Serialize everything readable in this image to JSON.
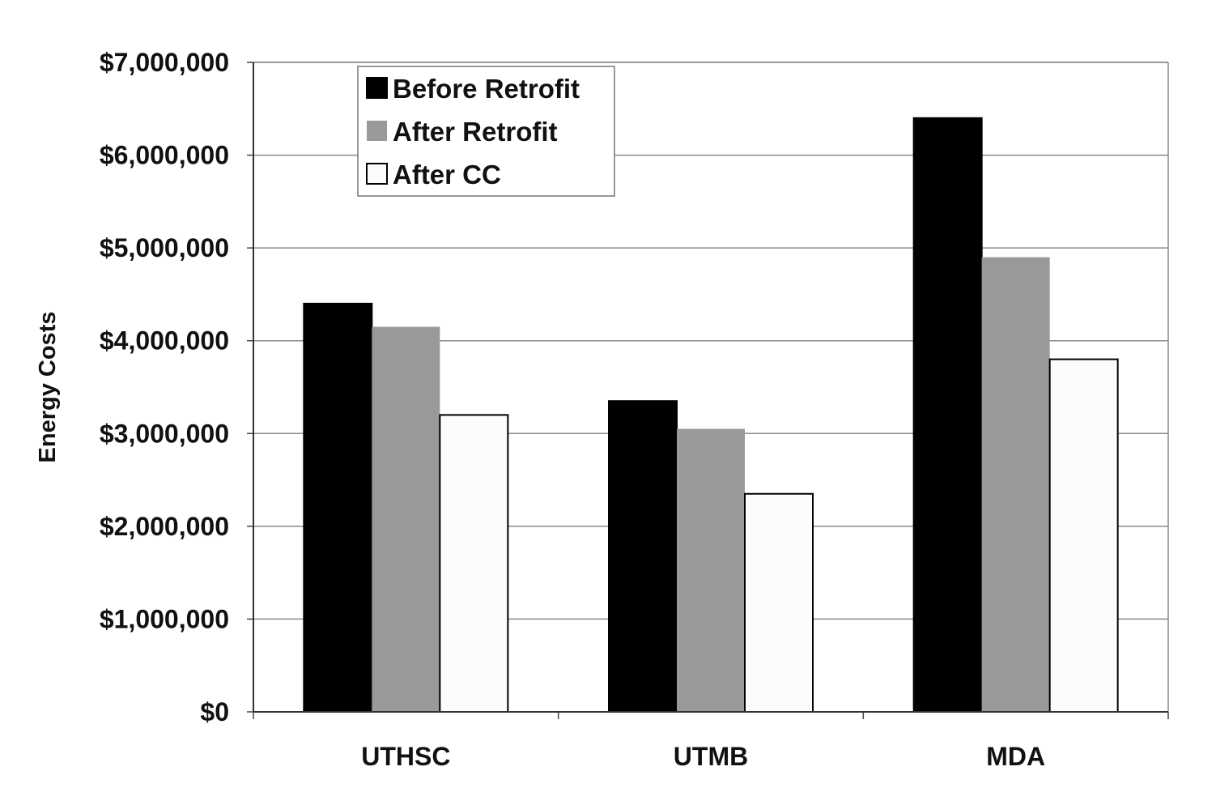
{
  "chart_data": {
    "type": "bar",
    "title": "",
    "xlabel": "",
    "ylabel": "Energy Costs",
    "ylim": [
      0,
      7000000
    ],
    "yticks": [
      0,
      1000000,
      2000000,
      3000000,
      4000000,
      5000000,
      6000000,
      7000000
    ],
    "ytick_labels": [
      "$0",
      "$1,000,000",
      "$2,000,000",
      "$3,000,000",
      "$4,000,000",
      "$5,000,000",
      "$6,000,000",
      "$7,000,000"
    ],
    "categories": [
      "UTHSC",
      "UTMB",
      "MDA"
    ],
    "series": [
      {
        "name": "Before Retrofit",
        "color": "#000000",
        "values": [
          4400000,
          3350000,
          6400000
        ]
      },
      {
        "name": "After Retrofit",
        "color": "#999999",
        "values": [
          4150000,
          3050000,
          4900000
        ]
      },
      {
        "name": "After CC",
        "color": "#fcfcfc",
        "values": [
          3200000,
          2350000,
          3800000
        ]
      }
    ],
    "grid": true,
    "legend_position": "top-left"
  }
}
